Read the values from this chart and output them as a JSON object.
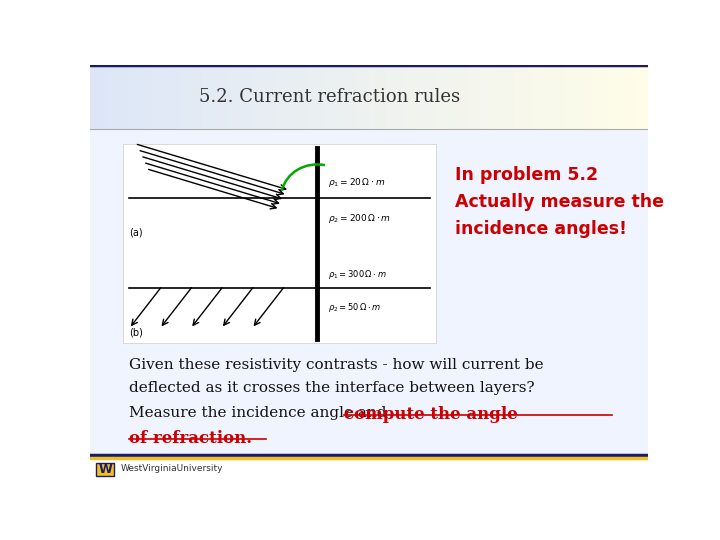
{
  "title": "5.2. Current refraction rules",
  "title_fontsize": 13,
  "title_color": "#333333",
  "bg_color": "#ffffff",
  "header_bg_left": "#dce6f7",
  "header_bg_right": "#fffde8",
  "annotation_line1": "In problem 5.2",
  "annotation_line2": "Actually measure the",
  "annotation_line3": "incidence angles!",
  "annotation_color": "#cc0000",
  "annotation_fontsize": 12.5,
  "body_text1": "Given these resistivity contrasts - how will current be",
  "body_text2": "deflected as it crosses the interface between layers?",
  "body_text3": "Measure the incidence angle and ",
  "body_text4": "compute the angle",
  "body_text5": "of refraction.",
  "body_fontsize": 11,
  "body_color": "#111111",
  "red_color": "#cc0000",
  "footer_color_top": "#1a1a6e",
  "footer_color_bottom": "#f0c020"
}
